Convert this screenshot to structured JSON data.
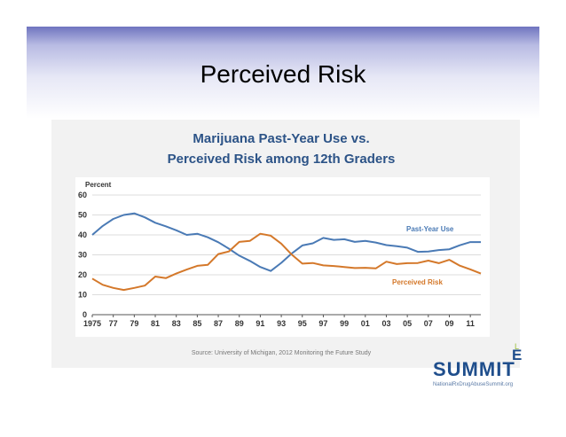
{
  "slide": {
    "title": "Perceived Risk"
  },
  "figure": {
    "source": "Source: University of Michigan, 2012 Monitoring the Future Study"
  },
  "logo": {
    "letter_l": "L",
    "letter_e": "E",
    "summit": "SUMMIT",
    "url": "NationalRxDrugAbuseSummit.org"
  },
  "chart_data": {
    "type": "line",
    "title": "Marijuana Past-Year Use vs.",
    "subtitle": "Perceived Risk among 12th Graders",
    "ylabel": "Percent",
    "xlabel": "",
    "ylim": [
      0,
      60
    ],
    "yticks": [
      0,
      10,
      20,
      30,
      40,
      50,
      60
    ],
    "xlim": [
      1975,
      2012
    ],
    "xtick_values": [
      1975,
      1977,
      1979,
      1981,
      1983,
      1985,
      1987,
      1989,
      1991,
      1993,
      1995,
      1997,
      1999,
      2001,
      2003,
      2005,
      2007,
      2009,
      2011
    ],
    "xtick_labels": [
      "1975",
      "77",
      "79",
      "81",
      "83",
      "85",
      "87",
      "89",
      "91",
      "93",
      "95",
      "97",
      "99",
      "01",
      "03",
      "05",
      "07",
      "09",
      "11"
    ],
    "grid": true,
    "legend": "inline labels at right",
    "x": [
      1975,
      1976,
      1977,
      1978,
      1979,
      1980,
      1981,
      1982,
      1983,
      1984,
      1985,
      1986,
      1987,
      1988,
      1989,
      1990,
      1991,
      1992,
      1993,
      1994,
      1995,
      1996,
      1997,
      1998,
      1999,
      2000,
      2001,
      2002,
      2003,
      2004,
      2005,
      2006,
      2007,
      2008,
      2009,
      2010,
      2011,
      2012
    ],
    "series": [
      {
        "name": "Past-Year Use",
        "color": "#4a7ab5",
        "values": [
          40,
          44.5,
          48,
          50,
          50.8,
          48.8,
          46.1,
          44.3,
          42.3,
          40,
          40.6,
          38.8,
          36.3,
          33.1,
          29.6,
          27,
          23.9,
          21.9,
          26,
          30.7,
          34.7,
          35.8,
          38.5,
          37.5,
          37.8,
          36.5,
          37,
          36.2,
          34.9,
          34.3,
          33.6,
          31.5,
          31.7,
          32.4,
          32.8,
          34.8,
          36.4,
          36.4
        ]
      },
      {
        "name": "Perceived Risk",
        "color": "#d4782a",
        "values": [
          18.1,
          15,
          13.4,
          12.4,
          13.4,
          14.6,
          19.1,
          18.3,
          20.6,
          22.6,
          24.5,
          25,
          30.4,
          31.7,
          36.5,
          37,
          40.6,
          39.6,
          35.6,
          30.1,
          25.6,
          25.9,
          24.7,
          24.4,
          23.9,
          23.4,
          23.5,
          23.2,
          26.6,
          25.4,
          25.8,
          25.9,
          27.1,
          25.8,
          27.5,
          24.6,
          22.7,
          20.6
        ]
      }
    ]
  }
}
